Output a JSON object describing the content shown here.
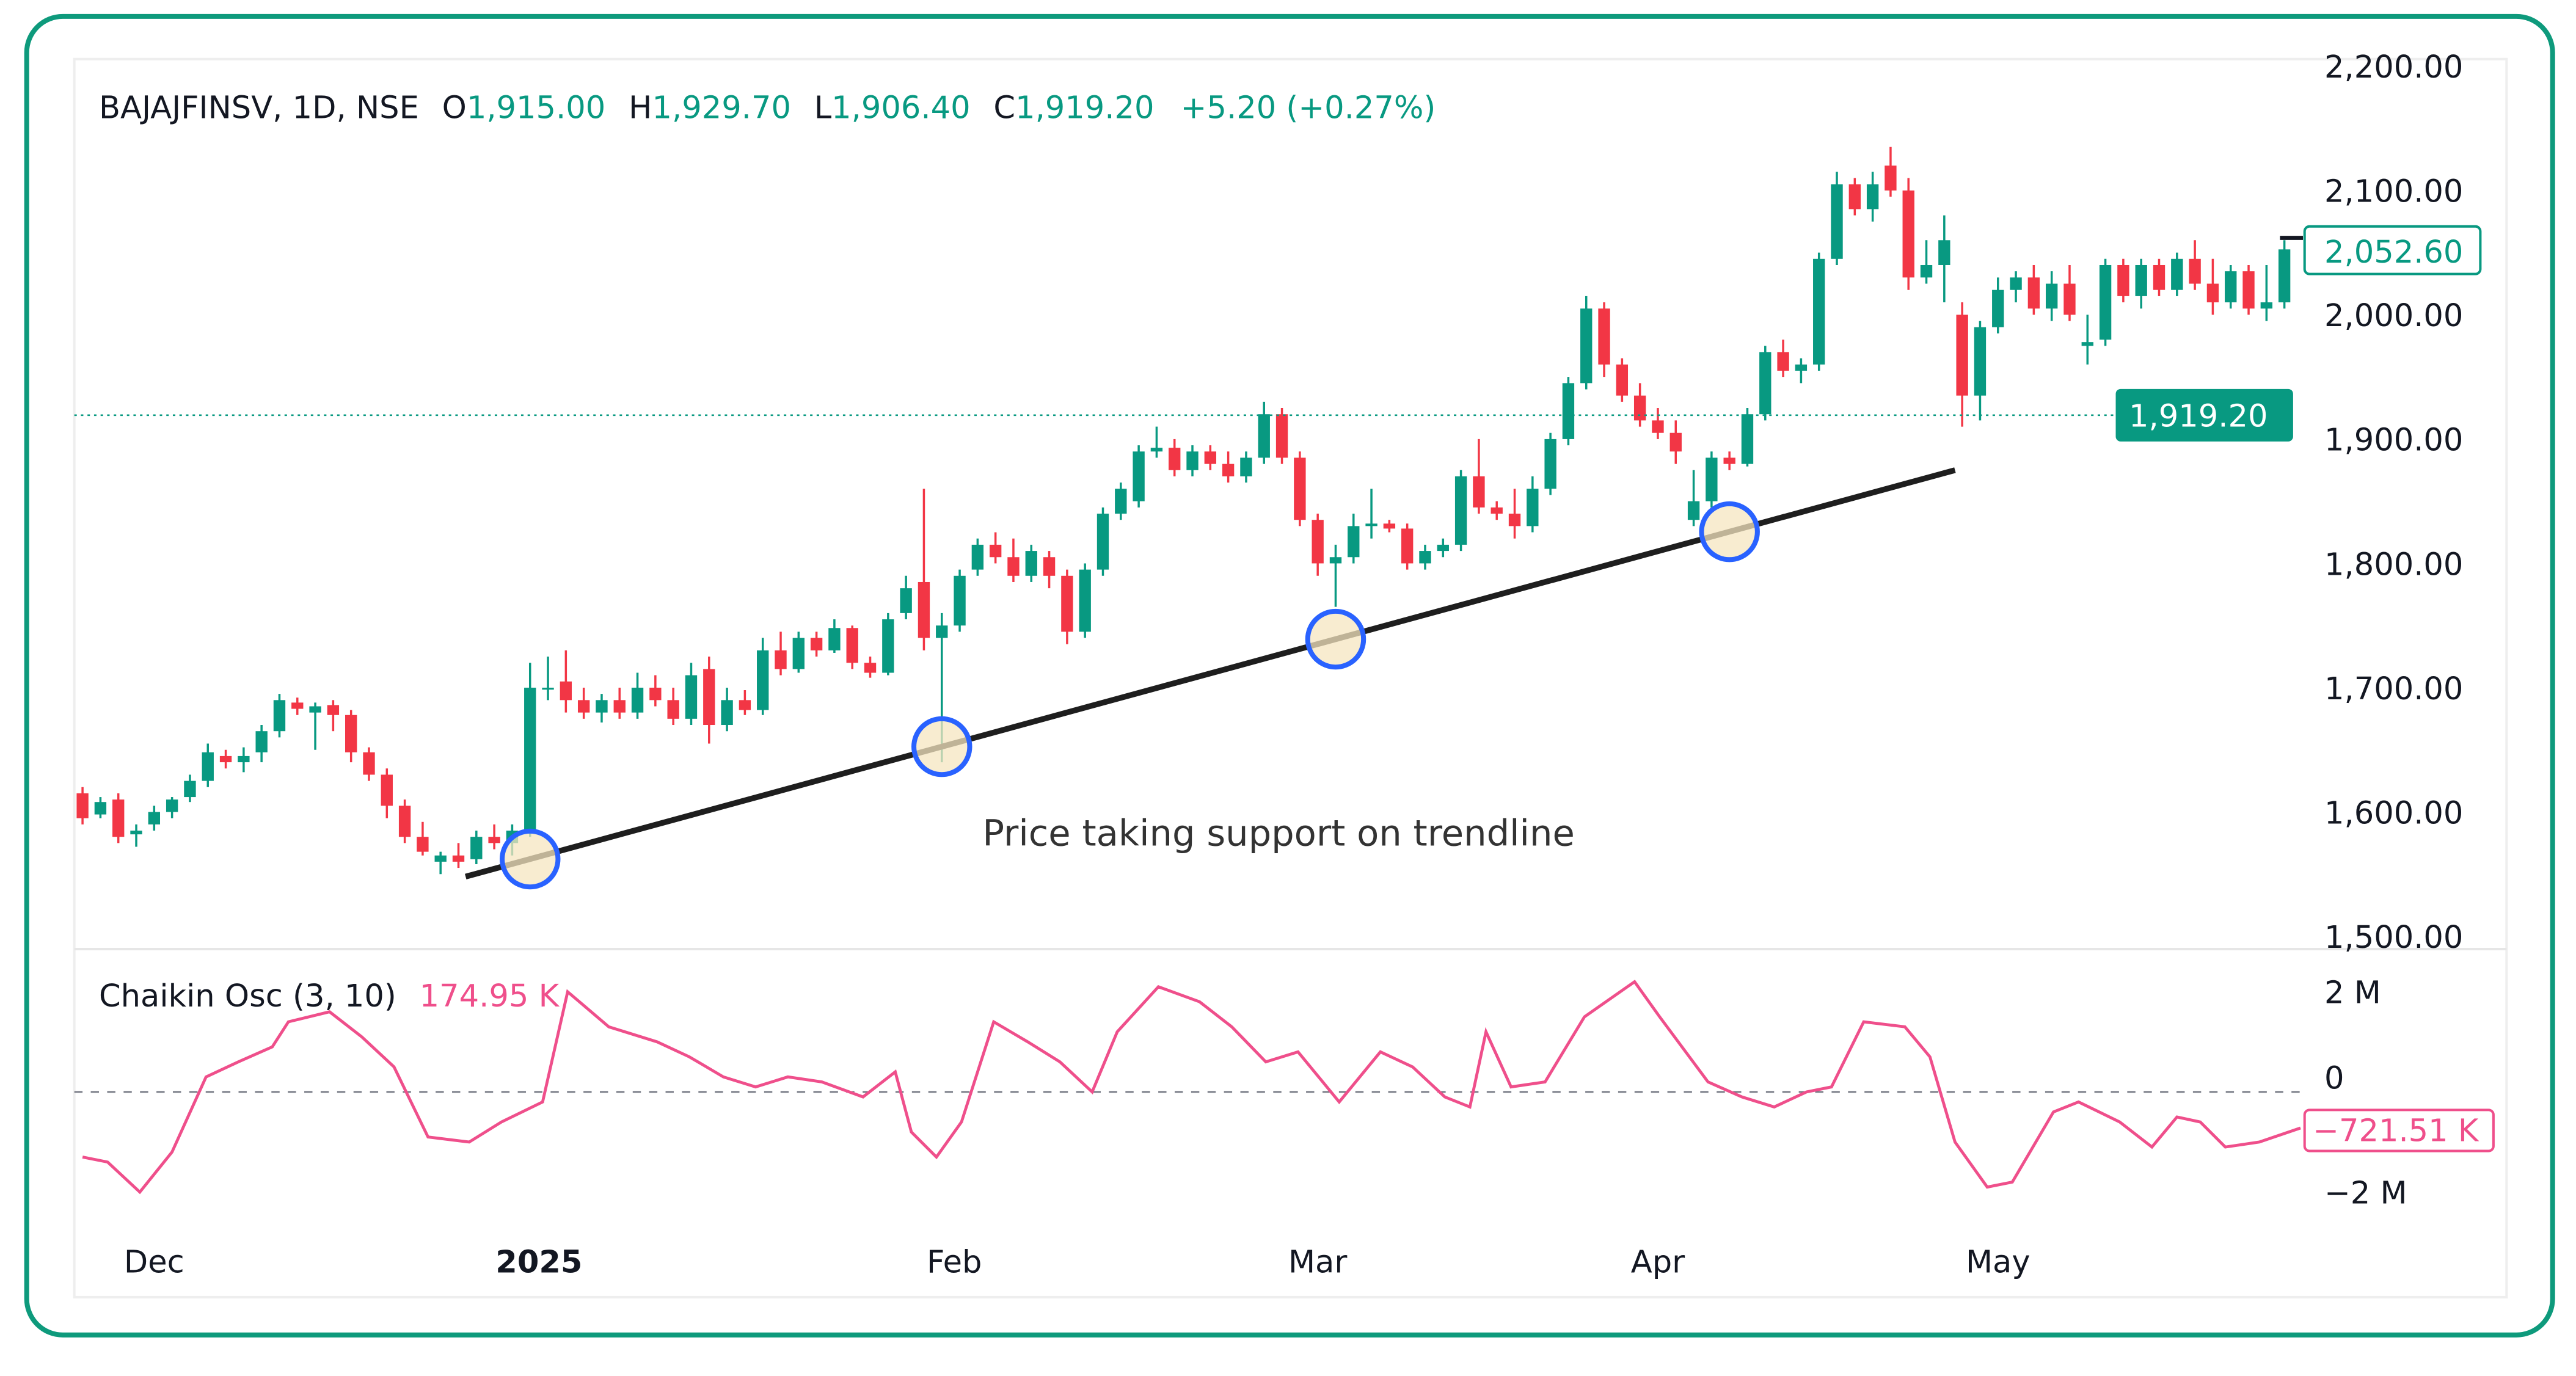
{
  "header": {
    "symbol": "BAJAJFINSV, 1D, NSE",
    "o_label": "O",
    "o_value": "1,915.00",
    "h_label": "H",
    "h_value": "1,929.70",
    "l_label": "L",
    "l_value": "1,906.40",
    "c_label": "C",
    "c_value": "1,919.20",
    "change": "+5.20 (+0.27%)"
  },
  "annotation": "Price taking support on trendline",
  "colors": {
    "frame": "#0e9a7c",
    "up": "#089981",
    "down": "#f23645",
    "osc": "#ef4f8b",
    "trendline": "#1e1e1e",
    "circle": "#2962ff",
    "circle_fill": "#f5e6c0"
  },
  "chart_data": [
    {
      "type": "candlestick",
      "ylim": [
        1500,
        2200
      ],
      "y_ticks": [
        "2,200.00",
        "2,100.00",
        "2,000.00",
        "1,900.00",
        "1,800.00",
        "1,700.00",
        "1,600.00",
        "1,500.00"
      ],
      "y_tick_values": [
        2200,
        2100,
        2000,
        1900,
        1800,
        1700,
        1600,
        1500
      ],
      "x_ticks": [
        {
          "label": "Dec",
          "bar": 4,
          "bold": false
        },
        {
          "label": "2025",
          "bar": 25.5,
          "bold": true
        },
        {
          "label": "Feb",
          "bar": 48.7,
          "bold": false
        },
        {
          "label": "Mar",
          "bar": 69,
          "bold": false
        },
        {
          "label": "Apr",
          "bar": 88,
          "bold": false
        },
        {
          "label": "May",
          "bar": 107,
          "bold": false
        }
      ],
      "last_price": {
        "label": "2,052.60",
        "value": 2052.6
      },
      "crosshair_price": {
        "label": "1,919.20",
        "value": 1919.2
      },
      "trendline": {
        "from": [
          21.4,
          1548
        ],
        "to": [
          104.6,
          1875
        ]
      },
      "support_touches": [
        25,
        48,
        70,
        92
      ],
      "candles": [
        [
          1615,
          1620,
          1590,
          1595
        ],
        [
          1598,
          1612,
          1595,
          1608
        ],
        [
          1610,
          1615,
          1575,
          1580
        ],
        [
          1582,
          1590,
          1572,
          1585
        ],
        [
          1590,
          1605,
          1585,
          1600
        ],
        [
          1600,
          1612,
          1595,
          1610
        ],
        [
          1612,
          1630,
          1608,
          1625
        ],
        [
          1625,
          1655,
          1620,
          1648
        ],
        [
          1645,
          1650,
          1635,
          1640
        ],
        [
          1640,
          1652,
          1632,
          1645
        ],
        [
          1648,
          1670,
          1640,
          1665
        ],
        [
          1665,
          1695,
          1660,
          1690
        ],
        [
          1688,
          1692,
          1678,
          1683
        ],
        [
          1680,
          1688,
          1650,
          1685
        ],
        [
          1686,
          1690,
          1665,
          1678
        ],
        [
          1678,
          1682,
          1640,
          1648
        ],
        [
          1648,
          1652,
          1625,
          1630
        ],
        [
          1630,
          1635,
          1595,
          1605
        ],
        [
          1605,
          1610,
          1575,
          1580
        ],
        [
          1580,
          1592,
          1565,
          1568
        ],
        [
          1560,
          1568,
          1550,
          1565
        ],
        [
          1565,
          1575,
          1555,
          1560
        ],
        [
          1562,
          1585,
          1558,
          1580
        ],
        [
          1580,
          1590,
          1570,
          1575
        ],
        [
          1575,
          1590,
          1565,
          1585
        ],
        [
          1585,
          1720,
          1580,
          1700
        ],
        [
          1700,
          1725,
          1690,
          1700
        ],
        [
          1705,
          1730,
          1680,
          1690
        ],
        [
          1690,
          1700,
          1675,
          1680
        ],
        [
          1680,
          1695,
          1672,
          1690
        ],
        [
          1690,
          1700,
          1675,
          1680
        ],
        [
          1680,
          1712,
          1675,
          1700
        ],
        [
          1700,
          1710,
          1685,
          1690
        ],
        [
          1690,
          1700,
          1670,
          1675
        ],
        [
          1675,
          1720,
          1670,
          1710
        ],
        [
          1715,
          1725,
          1655,
          1670
        ],
        [
          1670,
          1700,
          1665,
          1690
        ],
        [
          1690,
          1698,
          1678,
          1682
        ],
        [
          1682,
          1740,
          1678,
          1730
        ],
        [
          1730,
          1745,
          1710,
          1715
        ],
        [
          1715,
          1745,
          1712,
          1740
        ],
        [
          1740,
          1745,
          1725,
          1730
        ],
        [
          1730,
          1755,
          1728,
          1748
        ],
        [
          1748,
          1750,
          1715,
          1720
        ],
        [
          1720,
          1725,
          1708,
          1712
        ],
        [
          1712,
          1760,
          1710,
          1755
        ],
        [
          1760,
          1790,
          1755,
          1780
        ],
        [
          1785,
          1860,
          1730,
          1740
        ],
        [
          1740,
          1760,
          1640,
          1750
        ],
        [
          1750,
          1795,
          1745,
          1790
        ],
        [
          1795,
          1820,
          1790,
          1815
        ],
        [
          1815,
          1825,
          1800,
          1805
        ],
        [
          1805,
          1820,
          1785,
          1790
        ],
        [
          1790,
          1815,
          1785,
          1810
        ],
        [
          1805,
          1810,
          1780,
          1790
        ],
        [
          1790,
          1795,
          1735,
          1745
        ],
        [
          1745,
          1800,
          1740,
          1795
        ],
        [
          1795,
          1845,
          1790,
          1840
        ],
        [
          1840,
          1865,
          1835,
          1860
        ],
        [
          1850,
          1895,
          1845,
          1890
        ],
        [
          1890,
          1910,
          1885,
          1893
        ],
        [
          1893,
          1900,
          1870,
          1875
        ],
        [
          1875,
          1895,
          1870,
          1890
        ],
        [
          1890,
          1895,
          1875,
          1880
        ],
        [
          1880,
          1890,
          1865,
          1870
        ],
        [
          1870,
          1890,
          1865,
          1885
        ],
        [
          1885,
          1930,
          1880,
          1920
        ],
        [
          1920,
          1925,
          1880,
          1885
        ],
        [
          1885,
          1890,
          1830,
          1835
        ],
        [
          1835,
          1840,
          1790,
          1800
        ],
        [
          1800,
          1815,
          1765,
          1805
        ],
        [
          1805,
          1840,
          1800,
          1830
        ],
        [
          1830,
          1860,
          1820,
          1832
        ],
        [
          1832,
          1835,
          1825,
          1828
        ],
        [
          1828,
          1832,
          1795,
          1800
        ],
        [
          1800,
          1815,
          1795,
          1810
        ],
        [
          1810,
          1820,
          1805,
          1815
        ],
        [
          1815,
          1875,
          1810,
          1870
        ],
        [
          1870,
          1900,
          1840,
          1845
        ],
        [
          1845,
          1850,
          1835,
          1840
        ],
        [
          1840,
          1860,
          1820,
          1830
        ],
        [
          1830,
          1870,
          1825,
          1860
        ],
        [
          1860,
          1905,
          1855,
          1900
        ],
        [
          1900,
          1950,
          1895,
          1945
        ],
        [
          1945,
          2015,
          1940,
          2005
        ],
        [
          2005,
          2010,
          1950,
          1960
        ],
        [
          1960,
          1965,
          1930,
          1935
        ],
        [
          1935,
          1945,
          1910,
          1915
        ],
        [
          1915,
          1925,
          1900,
          1905
        ],
        [
          1905,
          1915,
          1880,
          1890
        ],
        [
          1835,
          1875,
          1830,
          1850
        ],
        [
          1850,
          1890,
          1845,
          1885
        ],
        [
          1885,
          1890,
          1875,
          1880
        ],
        [
          1880,
          1925,
          1878,
          1920
        ],
        [
          1920,
          1975,
          1915,
          1970
        ],
        [
          1970,
          1980,
          1950,
          1955
        ],
        [
          1955,
          1965,
          1945,
          1960
        ],
        [
          1960,
          2050,
          1955,
          2045
        ],
        [
          2045,
          2115,
          2040,
          2105
        ],
        [
          2105,
          2110,
          2080,
          2085
        ],
        [
          2085,
          2115,
          2075,
          2105
        ],
        [
          2120,
          2135,
          2095,
          2100
        ],
        [
          2100,
          2110,
          2020,
          2030
        ],
        [
          2030,
          2060,
          2025,
          2040
        ],
        [
          2040,
          2080,
          2010,
          2060
        ],
        [
          2000,
          2010,
          1910,
          1935
        ],
        [
          1935,
          1995,
          1915,
          1990
        ],
        [
          1990,
          2030,
          1985,
          2020
        ],
        [
          2020,
          2035,
          2010,
          2030
        ],
        [
          2030,
          2040,
          2000,
          2005
        ],
        [
          2005,
          2035,
          1995,
          2025
        ],
        [
          2025,
          2040,
          1995,
          2000
        ],
        [
          1975,
          2000,
          1960,
          1978
        ],
        [
          1980,
          2045,
          1975,
          2040
        ],
        [
          2040,
          2045,
          2010,
          2015
        ],
        [
          2015,
          2045,
          2005,
          2040
        ],
        [
          2040,
          2045,
          2015,
          2020
        ],
        [
          2020,
          2050,
          2015,
          2045
        ],
        [
          2045,
          2060,
          2020,
          2025
        ],
        [
          2025,
          2045,
          2000,
          2010
        ],
        [
          2010,
          2040,
          2005,
          2035
        ],
        [
          2035,
          2040,
          2000,
          2005
        ],
        [
          2005,
          2040,
          1995,
          2010
        ],
        [
          2010,
          2060,
          2005,
          2052.6
        ]
      ]
    },
    {
      "type": "line",
      "title": "Chaikin Osc (3, 10)",
      "legend_value": "174.95 K",
      "ylim": [
        -2.5,
        2.5
      ],
      "y_ticks": [
        "2 M",
        "0",
        "−2 M"
      ],
      "y_tick_values": [
        2,
        0,
        -2
      ],
      "zero_line": "dashed",
      "last_value": {
        "label": "−721.51 K",
        "value": -0.72
      },
      "points": [
        [
          0,
          -1.3
        ],
        [
          1.4,
          -1.4
        ],
        [
          3.2,
          -2.0
        ],
        [
          5,
          -1.2
        ],
        [
          6.9,
          0.3
        ],
        [
          8.7,
          0.6
        ],
        [
          10.6,
          0.9
        ],
        [
          11.5,
          1.4
        ],
        [
          13.8,
          1.6
        ],
        [
          15.6,
          1.1
        ],
        [
          17.4,
          0.5
        ],
        [
          19.3,
          -0.9
        ],
        [
          21.6,
          -1.0
        ],
        [
          23.4,
          -0.6
        ],
        [
          25.7,
          -0.2
        ],
        [
          27.1,
          2.0
        ],
        [
          29.4,
          1.3
        ],
        [
          32.1,
          1.0
        ],
        [
          33.9,
          0.7
        ],
        [
          35.8,
          0.3
        ],
        [
          37.6,
          0.1
        ],
        [
          39.4,
          0.3
        ],
        [
          41.3,
          0.2
        ],
        [
          43.6,
          -0.1
        ],
        [
          45.4,
          0.4
        ],
        [
          46.3,
          -0.8
        ],
        [
          47.7,
          -1.3
        ],
        [
          49.1,
          -0.6
        ],
        [
          50.9,
          1.4
        ],
        [
          52.8,
          1.0
        ],
        [
          54.6,
          0.6
        ],
        [
          56.4,
          0
        ],
        [
          57.8,
          1.2
        ],
        [
          60.1,
          2.1
        ],
        [
          62.4,
          1.8
        ],
        [
          64.2,
          1.3
        ],
        [
          66.1,
          0.6
        ],
        [
          67.9,
          0.8
        ],
        [
          70.2,
          -0.2
        ],
        [
          72.5,
          0.8
        ],
        [
          74.3,
          0.5
        ],
        [
          76.1,
          -0.1
        ],
        [
          77.5,
          -0.3
        ],
        [
          78.4,
          1.2
        ],
        [
          79.8,
          0.1
        ],
        [
          81.7,
          0.2
        ],
        [
          83.9,
          1.5
        ],
        [
          86.7,
          2.2
        ],
        [
          88.1,
          1.5
        ],
        [
          90.8,
          0.2
        ],
        [
          92.7,
          -0.1
        ],
        [
          94.5,
          -0.3
        ],
        [
          96.3,
          0.0
        ],
        [
          97.7,
          0.1
        ],
        [
          99.5,
          1.4
        ],
        [
          101.8,
          1.3
        ],
        [
          103.2,
          0.7
        ],
        [
          104.6,
          -1.0
        ],
        [
          106.4,
          -1.9
        ],
        [
          107.8,
          -1.8
        ],
        [
          110.1,
          -0.4
        ],
        [
          111.5,
          -0.2
        ],
        [
          113.8,
          -0.6
        ],
        [
          115.6,
          -1.1
        ],
        [
          117,
          -0.5
        ],
        [
          118.3,
          -0.6
        ],
        [
          119.7,
          -1.1
        ],
        [
          121.6,
          -1.0
        ],
        [
          123.9,
          -0.72
        ]
      ]
    }
  ]
}
